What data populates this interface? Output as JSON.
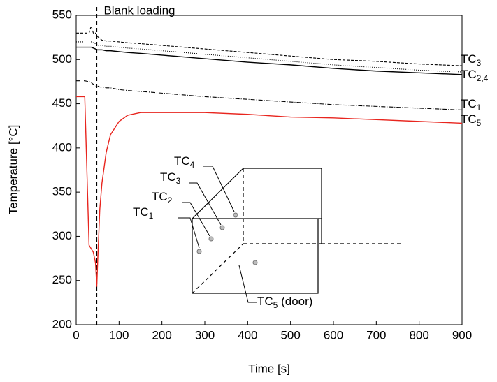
{
  "chart_data": {
    "type": "line",
    "xlabel": "Time [s]",
    "ylabel": "Temperature [°C]",
    "xlim": [
      0,
      900
    ],
    "ylim": [
      200,
      550
    ],
    "xticks": [
      0,
      100,
      200,
      300,
      400,
      500,
      600,
      700,
      800,
      900
    ],
    "yticks": [
      200,
      250,
      300,
      350,
      400,
      450,
      500,
      550
    ],
    "annotation": {
      "text": "Blank loading",
      "x": 48
    },
    "x": [
      0,
      10,
      20,
      30,
      35,
      40,
      45,
      48,
      50,
      55,
      60,
      70,
      80,
      100,
      120,
      150,
      200,
      300,
      400,
      500,
      600,
      700,
      800,
      900
    ],
    "series": [
      {
        "name": {
          "text": "TC",
          "sub": "3"
        },
        "color": "#000000",
        "style": "dashed",
        "values": [
          530,
          530,
          530,
          530,
          538,
          530,
          530,
          528,
          526,
          524,
          522,
          521,
          521,
          520,
          519,
          518,
          516,
          512,
          508,
          504,
          500,
          498,
          495,
          493
        ]
      },
      {
        "color": "#000000",
        "style": "dotted",
        "values": [
          520,
          520,
          520,
          520,
          520,
          519,
          518,
          517,
          516,
          516,
          516,
          515,
          515,
          514,
          513,
          512,
          510,
          506,
          502,
          498,
          494,
          491,
          488,
          486
        ]
      },
      {
        "name": {
          "text": "TC",
          "sub": "2,4"
        },
        "color": "#000000",
        "style": "solid",
        "values": [
          514,
          514,
          514,
          514,
          514,
          513,
          512,
          511,
          511,
          511,
          511,
          510,
          510,
          509,
          508,
          507,
          505,
          501,
          497,
          494,
          490,
          487,
          485,
          483
        ]
      },
      {
        "name": {
          "text": "TC",
          "sub": "1"
        },
        "color": "#000000",
        "style": "dashdot",
        "values": [
          476,
          476,
          476,
          475,
          474,
          472,
          470,
          470,
          470,
          469,
          469,
          468,
          468,
          466,
          465,
          464,
          462,
          458,
          455,
          452,
          449,
          447,
          445,
          443
        ]
      },
      {
        "name": {
          "text": "TC",
          "sub": "5"
        },
        "color": "#e8251e",
        "style": "solid",
        "values": [
          458,
          458,
          458,
          290,
          286,
          282,
          270,
          243,
          270,
          330,
          360,
          395,
          415,
          430,
          437,
          440,
          440,
          440,
          438,
          435,
          434,
          432,
          430,
          428
        ]
      }
    ],
    "inset": {
      "labels": [
        {
          "text": "TC",
          "sub": "1"
        },
        {
          "text": "TC",
          "sub": "2"
        },
        {
          "text": "TC",
          "sub": "3"
        },
        {
          "text": "TC",
          "sub": "4"
        },
        {
          "text": "TC",
          "sub": "5",
          "suffix": " (door)"
        }
      ]
    }
  }
}
